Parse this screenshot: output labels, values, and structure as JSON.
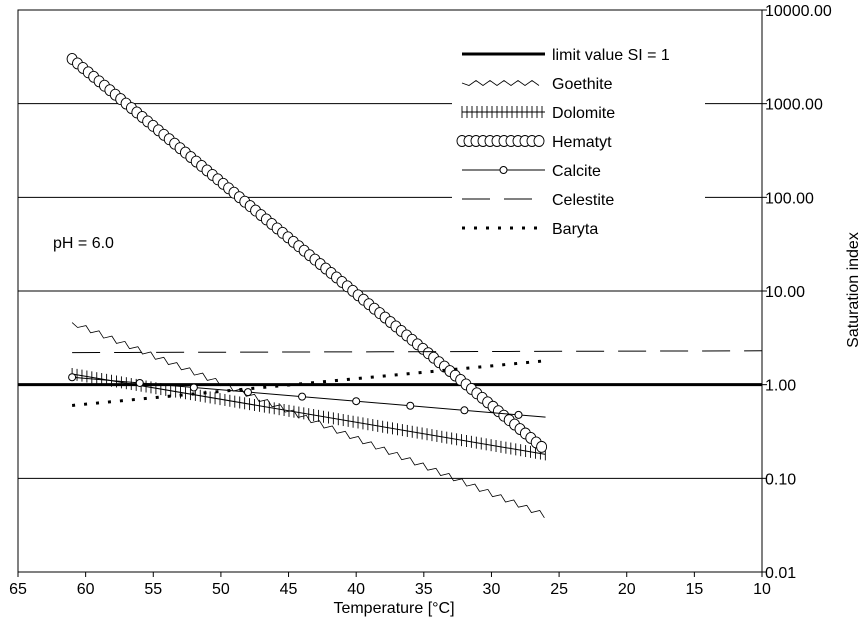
{
  "chart_data": {
    "type": "line",
    "xlabel": "Temperature [°C]",
    "ylabel": "Saturation index",
    "annotation": "pH = 6.0",
    "x_axis": {
      "min": 10,
      "max": 65,
      "reversed": true,
      "ticks": [
        65,
        60,
        55,
        50,
        45,
        40,
        35,
        30,
        25,
        20,
        15,
        10
      ]
    },
    "y_axis": {
      "scale": "log",
      "min": 0.01,
      "max": 10000,
      "position": "right",
      "ticks": [
        0.01,
        0.1,
        1,
        10,
        100,
        1000,
        10000
      ],
      "tick_labels": [
        "0.01",
        "0.10",
        "1.00",
        "10.00",
        "100.00",
        "1000.00",
        "10000.00"
      ]
    },
    "grid": "horizontal",
    "legend": "top-right",
    "limit_line": {
      "name": "limit value SI = 1",
      "y": 1
    },
    "series": [
      {
        "name": "Goethite",
        "style": "zigzag",
        "x": [
          61,
          26
        ],
        "y": [
          4.6,
          0.04
        ]
      },
      {
        "name": "Dolomite",
        "style": "crosses",
        "x": [
          61,
          26
        ],
        "y": [
          1.3,
          0.18
        ]
      },
      {
        "name": "Hematyt",
        "style": "circles",
        "x": [
          61,
          26
        ],
        "y": [
          3000,
          0.2
        ]
      },
      {
        "name": "Calcite",
        "style": "open-circle",
        "x": [
          61,
          26
        ],
        "y": [
          1.2,
          0.45
        ]
      },
      {
        "name": "Celestite",
        "style": "dashed",
        "x": [
          61,
          10
        ],
        "y": [
          2.2,
          2.3
        ]
      },
      {
        "name": "Baryta",
        "style": "dotted",
        "x": [
          61,
          26
        ],
        "y": [
          0.6,
          1.8
        ]
      }
    ]
  }
}
